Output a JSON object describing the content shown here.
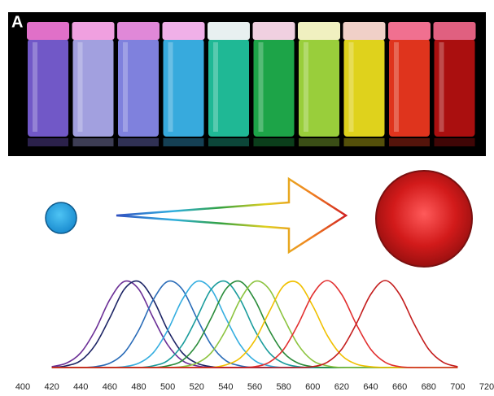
{
  "panel_label": "A",
  "chart_data": {
    "type": "line",
    "x": [
      420,
      430,
      440,
      450,
      460,
      470,
      480,
      490,
      500,
      510,
      520,
      530,
      540,
      550,
      560,
      570,
      580,
      590,
      600,
      610,
      620,
      630,
      640,
      650,
      660,
      670,
      680,
      690,
      700
    ],
    "xlim": [
      400,
      720
    ],
    "xticks": [
      400,
      420,
      440,
      460,
      480,
      500,
      520,
      540,
      560,
      580,
      600,
      620,
      640,
      660,
      680,
      700,
      720
    ],
    "ylim": [
      0,
      1
    ],
    "series": [
      {
        "color": "#6b2f96",
        "values": [
          0.01,
          0.05,
          0.17,
          0.43,
          0.78,
          0.99,
          0.9,
          0.57,
          0.26,
          0.08,
          0.02,
          0,
          0,
          0,
          0,
          0,
          0,
          0,
          0,
          0,
          0,
          0,
          0,
          0,
          0,
          0,
          0,
          0,
          0
        ]
      },
      {
        "color": "#1d2566",
        "values": [
          0,
          0.02,
          0.08,
          0.26,
          0.57,
          0.9,
          0.99,
          0.78,
          0.43,
          0.17,
          0.05,
          0.01,
          0,
          0,
          0,
          0,
          0,
          0,
          0,
          0,
          0,
          0,
          0,
          0,
          0,
          0,
          0,
          0,
          0
        ]
      },
      {
        "color": "#2a6cb8",
        "values": [
          0,
          0,
          0,
          0.01,
          0.05,
          0.17,
          0.43,
          0.78,
          0.99,
          0.9,
          0.57,
          0.26,
          0.08,
          0.02,
          0,
          0,
          0,
          0,
          0,
          0,
          0,
          0,
          0,
          0,
          0,
          0,
          0,
          0,
          0
        ]
      },
      {
        "color": "#35aee0",
        "values": [
          0,
          0,
          0,
          0,
          0,
          0.01,
          0.05,
          0.17,
          0.43,
          0.78,
          0.99,
          0.9,
          0.57,
          0.26,
          0.08,
          0.02,
          0,
          0,
          0,
          0,
          0,
          0,
          0,
          0,
          0,
          0,
          0,
          0,
          0
        ]
      },
      {
        "color": "#1a9c9c",
        "values": [
          0,
          0,
          0,
          0,
          0,
          0,
          0,
          0.02,
          0.08,
          0.26,
          0.57,
          0.9,
          0.99,
          0.78,
          0.43,
          0.17,
          0.05,
          0.01,
          0,
          0,
          0,
          0,
          0,
          0,
          0,
          0,
          0,
          0,
          0
        ]
      },
      {
        "color": "#2a8c3a",
        "values": [
          0,
          0,
          0,
          0,
          0,
          0,
          0,
          0,
          0.02,
          0.08,
          0.26,
          0.57,
          0.9,
          0.99,
          0.78,
          0.43,
          0.17,
          0.05,
          0.01,
          0,
          0,
          0,
          0,
          0,
          0,
          0,
          0,
          0,
          0
        ]
      },
      {
        "color": "#8cc43f",
        "values": [
          0,
          0,
          0,
          0,
          0,
          0,
          0,
          0,
          0,
          0.01,
          0.05,
          0.17,
          0.43,
          0.78,
          0.99,
          0.9,
          0.57,
          0.26,
          0.08,
          0.02,
          0,
          0,
          0,
          0,
          0,
          0,
          0,
          0,
          0
        ]
      },
      {
        "color": "#f0c000",
        "values": [
          0,
          0,
          0,
          0,
          0,
          0,
          0,
          0,
          0,
          0,
          0,
          0,
          0.03,
          0.11,
          0.31,
          0.64,
          0.94,
          0.97,
          0.71,
          0.37,
          0.14,
          0.04,
          0.01,
          0,
          0,
          0,
          0,
          0,
          0
        ]
      },
      {
        "color": "#e23030",
        "values": [
          0,
          0,
          0,
          0,
          0,
          0,
          0,
          0,
          0,
          0,
          0,
          0,
          0,
          0,
          0.01,
          0.06,
          0.21,
          0.5,
          0.84,
          1,
          0.84,
          0.5,
          0.21,
          0.06,
          0.01,
          0,
          0,
          0,
          0
        ]
      },
      {
        "color": "#c41e1e",
        "values": [
          0,
          0,
          0,
          0,
          0,
          0,
          0,
          0,
          0,
          0,
          0,
          0,
          0,
          0,
          0,
          0,
          0,
          0,
          0.01,
          0.06,
          0.21,
          0.5,
          0.84,
          1,
          0.84,
          0.5,
          0.21,
          0.06,
          0.01
        ]
      }
    ]
  }
}
